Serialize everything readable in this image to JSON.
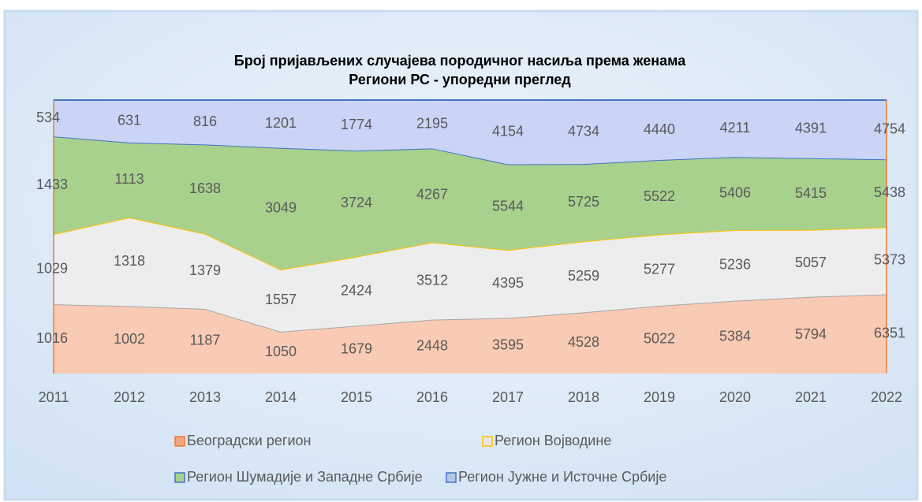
{
  "chart_data": {
    "type": "area",
    "stacking": "percent",
    "title": [
      "Број пријављених случајева породичног насиља према женама",
      "Региони РС - упоредни преглед"
    ],
    "categories": [
      "2011",
      "2012",
      "2013",
      "2014",
      "2015",
      "2016",
      "2017",
      "2018",
      "2019",
      "2020",
      "2021",
      "2022"
    ],
    "series": [
      {
        "name": "Београдски регион",
        "color": "#f9cbb5",
        "edge_color": "#a6a6a6",
        "marker_color": "#f4a582",
        "values": [
          1016,
          1002,
          1187,
          1050,
          1679,
          2448,
          3595,
          4528,
          5022,
          5384,
          5794,
          6351
        ]
      },
      {
        "name": "Регион Војводине",
        "color": "#ededed",
        "edge_color": "#ffc000",
        "marker_color": "#e7e6e6",
        "values": [
          1029,
          1318,
          1379,
          1557,
          2424,
          3512,
          4395,
          5259,
          5277,
          5236,
          5057,
          5373
        ]
      },
      {
        "name": "Регион Шумадије и Западне Србије",
        "color": "#a9d18e",
        "edge_color": "#4472c4",
        "marker_color": "#a9d18e",
        "values": [
          1433,
          1113,
          1638,
          3049,
          3724,
          4267,
          5544,
          5725,
          5522,
          5406,
          5415,
          5438
        ]
      },
      {
        "name": "Регион Јужне и Источне Србије",
        "color": "#c9d4f6",
        "edge_color": "#4472c4",
        "marker_color": "#b4c7e7",
        "values": [
          534,
          631,
          816,
          1201,
          1774,
          2195,
          4154,
          4734,
          4440,
          4211,
          4391,
          4754
        ]
      }
    ]
  }
}
